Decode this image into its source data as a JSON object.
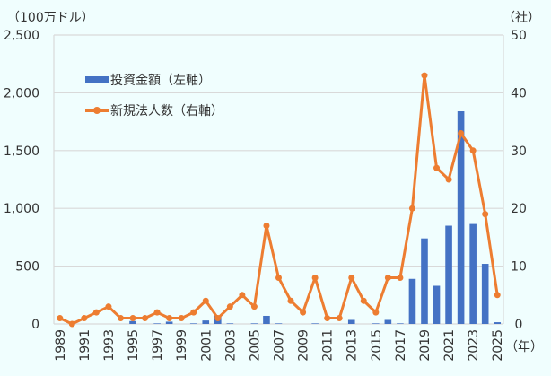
{
  "chart_data": {
    "type": "bar+line",
    "title": "",
    "left_axis_unit": "（100万ドル）",
    "right_axis_unit": "（社）",
    "x_axis_unit": "（年）",
    "categories": [
      1989,
      1990,
      1991,
      1992,
      1993,
      1994,
      1995,
      1996,
      1997,
      1998,
      1999,
      2000,
      2001,
      2002,
      2003,
      2004,
      2005,
      2006,
      2007,
      2008,
      2009,
      2010,
      2011,
      2012,
      2013,
      2014,
      2015,
      2016,
      2017,
      2018,
      2019,
      2020,
      2021,
      2022,
      2023,
      2024,
      2025
    ],
    "x_tick_labels": [
      "1989",
      "1991",
      "1993",
      "1995",
      "1997",
      "1999",
      "2001",
      "2003",
      "2005",
      "2007",
      "2009",
      "2011",
      "2013",
      "2015",
      "2017",
      "2019",
      "2021",
      "2023",
      "2025"
    ],
    "series": [
      {
        "name": "投資金額（左軸）",
        "type": "bar",
        "axis": "left",
        "color": "#4472c4",
        "values": [
          0,
          0,
          0,
          0,
          0,
          0,
          25,
          0,
          5,
          20,
          0,
          5,
          30,
          70,
          5,
          0,
          5,
          70,
          5,
          0,
          0,
          5,
          0,
          0,
          35,
          0,
          5,
          35,
          5,
          390,
          740,
          330,
          850,
          1840,
          865,
          520,
          15
        ]
      },
      {
        "name": "新規法人数（右軸）",
        "type": "line",
        "axis": "right",
        "color": "#ed7d31",
        "values": [
          1,
          0,
          1,
          2,
          3,
          1,
          1,
          1,
          2,
          1,
          1,
          2,
          4,
          1,
          3,
          5,
          3,
          17,
          8,
          4,
          2,
          8,
          1,
          1,
          8,
          4,
          2,
          8,
          8,
          20,
          43,
          27,
          25,
          33,
          30,
          19,
          5
        ]
      }
    ],
    "left_axis": {
      "min": 0,
      "max": 2500,
      "ticks": [
        "0",
        "500",
        "1,000",
        "1,500",
        "2,000",
        "2,500"
      ]
    },
    "right_axis": {
      "min": 0,
      "max": 50,
      "ticks": [
        "0",
        "10",
        "20",
        "30",
        "40",
        "50"
      ]
    },
    "grid": true,
    "legend_position": "upper-left-inside"
  },
  "legend": {
    "bar_label": "投資金額（左軸）",
    "line_label": "新規法人数（右軸）"
  }
}
